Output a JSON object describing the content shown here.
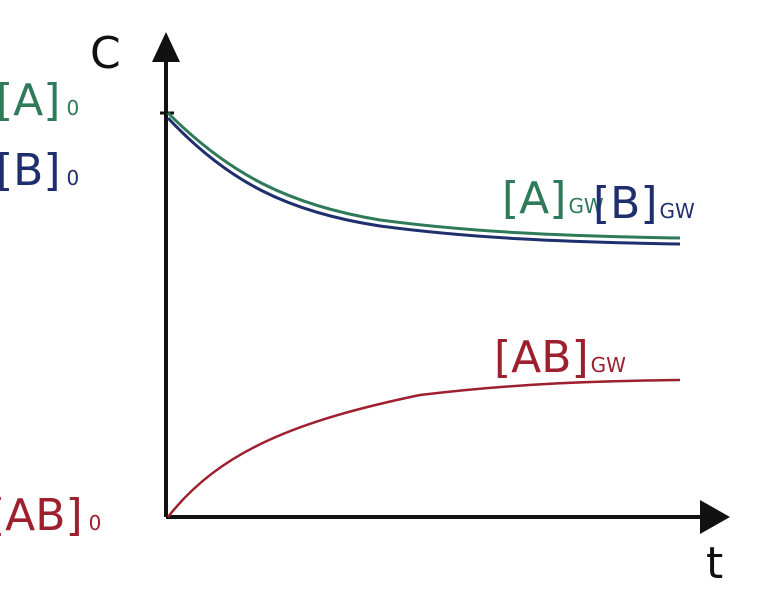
{
  "axes": {
    "y_label": "C",
    "x_label": "t"
  },
  "start_labels": [
    {
      "main": "[A]",
      "sub": "0"
    },
    {
      "main": "[B]",
      "sub": "0"
    },
    {
      "main": "[AB]",
      "sub": "0"
    }
  ],
  "end_labels": [
    {
      "main": "[A]",
      "sub": "GW"
    },
    {
      "main": "[B]",
      "sub": "GW"
    },
    {
      "main": "[AB]",
      "sub": "GW"
    }
  ]
}
